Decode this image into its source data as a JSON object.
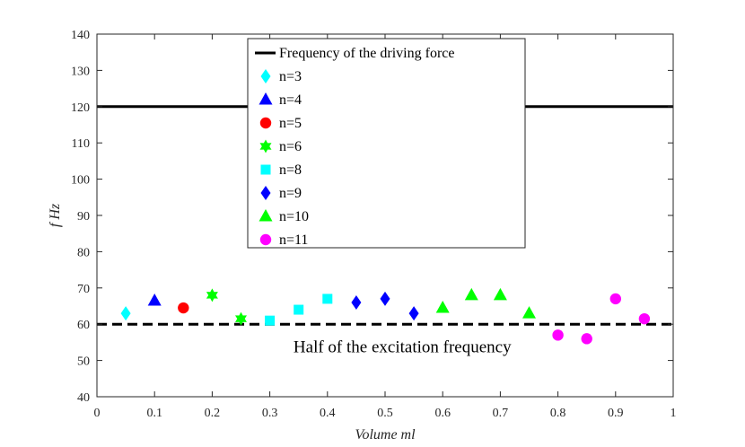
{
  "chart_data": {
    "type": "scatter",
    "title": "",
    "xlabel": "Volume ml",
    "ylabel": "f Hz",
    "xlim": [
      0,
      1
    ],
    "ylim": [
      40,
      140
    ],
    "xticks": [
      0,
      0.1,
      0.2,
      0.3,
      0.4,
      0.5,
      0.6,
      0.7,
      0.8,
      0.9,
      1
    ],
    "xtick_labels": [
      "0",
      "0.1",
      "0.2",
      "0.3",
      "0.4",
      "0.5",
      "0.6",
      "0.7",
      "0.8",
      "0.9",
      "1"
    ],
    "yticks": [
      40,
      50,
      60,
      70,
      80,
      90,
      100,
      110,
      120,
      130,
      140
    ],
    "ytick_labels": [
      "40",
      "50",
      "60",
      "70",
      "80",
      "90",
      "100",
      "110",
      "120",
      "130",
      "140"
    ],
    "grid": false,
    "legend_position": "top-center",
    "reference_lines": [
      {
        "name": "Frequency of the driving force",
        "y": 120,
        "style": "solid",
        "color": "#000000"
      },
      {
        "name": "Half of the excitation frequency",
        "y": 60,
        "style": "dashed",
        "color": "#000000"
      }
    ],
    "annotation": {
      "text": "Half of the excitation frequency",
      "x": 0.53,
      "y": 53
    }
  },
  "series": [
    {
      "name": "n=3",
      "marker": "diamond",
      "color": "#00ffff",
      "points": [
        {
          "x": 0.05,
          "y": 63
        }
      ]
    },
    {
      "name": "n=4",
      "marker": "triangle",
      "color": "#0000ff",
      "points": [
        {
          "x": 0.1,
          "y": 66.5
        }
      ]
    },
    {
      "name": "n=5",
      "marker": "circle",
      "color": "#ff0000",
      "points": [
        {
          "x": 0.15,
          "y": 64.5
        }
      ]
    },
    {
      "name": "n=6",
      "marker": "hexagram",
      "color": "#00ff00",
      "points": [
        {
          "x": 0.2,
          "y": 68
        },
        {
          "x": 0.25,
          "y": 61.5
        }
      ]
    },
    {
      "name": "n=8",
      "marker": "square",
      "color": "#00ffff",
      "points": [
        {
          "x": 0.3,
          "y": 61
        },
        {
          "x": 0.35,
          "y": 64
        },
        {
          "x": 0.4,
          "y": 67
        }
      ]
    },
    {
      "name": "n=9",
      "marker": "diamond",
      "color": "#0000ff",
      "points": [
        {
          "x": 0.45,
          "y": 66
        },
        {
          "x": 0.5,
          "y": 67
        },
        {
          "x": 0.55,
          "y": 63
        }
      ]
    },
    {
      "name": "n=10",
      "marker": "triangle",
      "color": "#00ff00",
      "points": [
        {
          "x": 0.6,
          "y": 64.5
        },
        {
          "x": 0.65,
          "y": 68
        },
        {
          "x": 0.7,
          "y": 68
        },
        {
          "x": 0.75,
          "y": 63
        }
      ]
    },
    {
      "name": "n=11",
      "marker": "circle",
      "color": "#ff00ff",
      "points": [
        {
          "x": 0.8,
          "y": 57
        },
        {
          "x": 0.85,
          "y": 56
        },
        {
          "x": 0.9,
          "y": 67
        },
        {
          "x": 0.95,
          "y": 61.5
        }
      ]
    }
  ]
}
